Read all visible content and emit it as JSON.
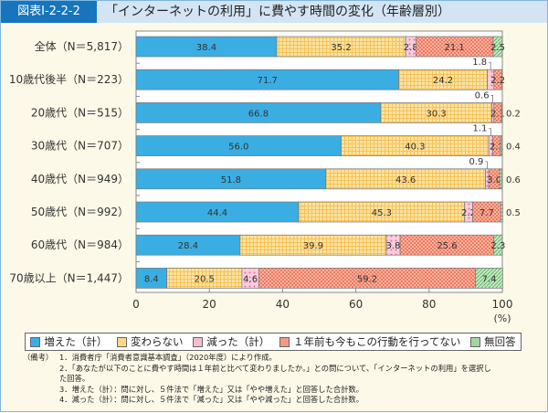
{
  "header": {
    "figure_id": "図表Ⅰ-2-2-2",
    "title": "「インターネットの利用」に費やす時間の変化（年齢層別）"
  },
  "chart_data": {
    "type": "bar",
    "orientation": "horizontal",
    "stacked": true,
    "title": "「インターネットの利用」に費やす時間の変化（年齢層別）",
    "categories": [
      "全体（N＝5,817）",
      "10歳代後半（N＝223）",
      "20歳代（N＝515）",
      "30歳代（N＝707）",
      "40歳代（N＝949）",
      "50歳代（N＝992）",
      "60歳代（N＝984）",
      "70歳以上（N＝1,447）"
    ],
    "series": [
      {
        "name": "増えた（計）",
        "color": "#3aaee3",
        "values": [
          38.4,
          71.7,
          66.8,
          56.0,
          51.8,
          44.4,
          28.4,
          8.4
        ]
      },
      {
        "name": "変わらない",
        "color": "#fcd98a",
        "values": [
          35.2,
          24.2,
          30.3,
          40.3,
          43.6,
          45.3,
          39.9,
          20.5
        ]
      },
      {
        "name": "減った（計）",
        "color": "#f7bcd0",
        "values": [
          2.8,
          1.8,
          0.6,
          1.1,
          0.9,
          2.2,
          3.8,
          4.6
        ]
      },
      {
        "name": "１年前も今もこの行動を行ってない",
        "color": "#f69a84",
        "values": [
          21.1,
          2.2,
          2.1,
          2.1,
          3.0,
          7.7,
          25.6,
          59.2
        ]
      },
      {
        "name": "無回答",
        "color": "#9fd6a0",
        "values": [
          2.5,
          null,
          0.2,
          0.4,
          0.6,
          0.5,
          2.3,
          7.4
        ]
      }
    ],
    "xlim": [
      0,
      100
    ],
    "xticks": [
      "0",
      "20",
      "40",
      "60",
      "80",
      "100"
    ],
    "xunit": "(%)",
    "grid": false,
    "legend": "bottom"
  },
  "notes": {
    "label": "（備考）",
    "items": [
      "1．消費者庁「消費者意識基本調査」（2020年度）により作成。",
      "2．「あなたが以下のことに費やす時間は１年前と比べて変わりましたか。」との問について、「インターネットの利用」を選択した回答。",
      "3．増えた（計）：問に対し、５件法で「増えた」又は「やや増えた」と回答した合計数。",
      "4．減った（計）：問に対し、５件法で「減った」又は「やや減った」と回答した合計数。"
    ]
  }
}
